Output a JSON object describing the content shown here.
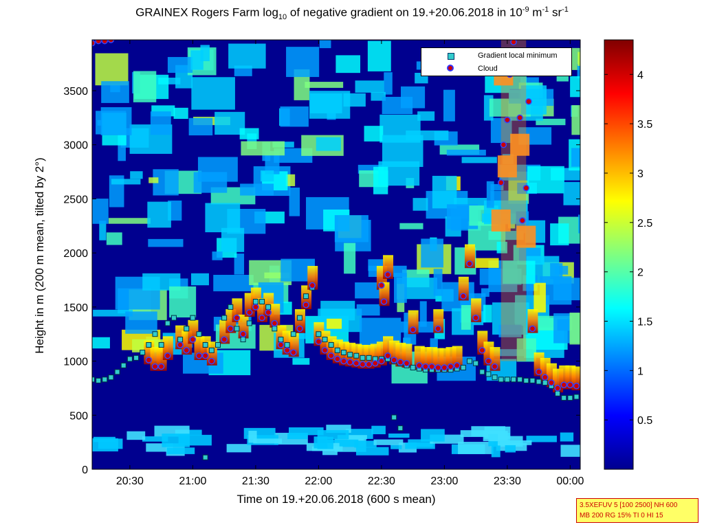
{
  "title": {
    "main": "GRAINEX Rogers Farm log",
    "sub": "10",
    "mid": " of negative gradient on 19.+20.06.2018 in 10",
    "exp1": "-9",
    "unit1": " m",
    "exp2": "-1",
    "unit2": " sr",
    "exp3": "-1"
  },
  "info_box": {
    "line1": "3.5XEFUV 5 [100 2500] NH 600",
    "line2": "MB 200 RG 15% TI 0 HI 15"
  },
  "chart_data": {
    "type": "heatmap",
    "xlabel": "Time on 19.+20.06.2018 (600 s mean)",
    "ylabel": "Height in m (200 m mean, tilted by 2°)",
    "x_tick_labels": [
      "20:30",
      "21:00",
      "21:30",
      "22:00",
      "22:30",
      "23:00",
      "23:30",
      "00:00"
    ],
    "x_tick_hours": [
      20.5,
      21.0,
      21.5,
      22.0,
      22.5,
      23.0,
      23.5,
      24.0
    ],
    "xlim_hours": [
      20.2,
      24.08
    ],
    "y_ticks": [
      0,
      500,
      1000,
      1500,
      2000,
      2500,
      3000,
      3500
    ],
    "ylim": [
      0,
      3970
    ],
    "colorbar": {
      "colormap": "jet",
      "range": [
        0,
        4.35
      ],
      "ticks": [
        0.5,
        1,
        1.5,
        2,
        2.5,
        3,
        3.5,
        4
      ]
    },
    "legend": {
      "position": "top-right",
      "entries": [
        "Gradient local minimum",
        "Cloud"
      ]
    },
    "series": [
      {
        "name": "Gradient local minimum",
        "marker": "square",
        "color": "#33cccc",
        "points": [
          [
            20.2,
            830
          ],
          [
            20.25,
            820
          ],
          [
            20.3,
            830
          ],
          [
            20.35,
            850
          ],
          [
            20.4,
            900
          ],
          [
            20.45,
            960
          ],
          [
            20.5,
            1020
          ],
          [
            20.55,
            1030
          ],
          [
            20.6,
            1080
          ],
          [
            20.65,
            1150
          ],
          [
            20.7,
            1250
          ],
          [
            20.75,
            1150
          ],
          [
            20.8,
            1350
          ],
          [
            20.85,
            1400
          ],
          [
            20.9,
            1200
          ],
          [
            20.95,
            1300
          ],
          [
            21.0,
            1400
          ],
          [
            21.05,
            1250
          ],
          [
            21.1,
            1150
          ],
          [
            21.15,
            1100
          ],
          [
            21.2,
            1150
          ],
          [
            21.25,
            1400
          ],
          [
            21.3,
            1500
          ],
          [
            21.35,
            1300
          ],
          [
            21.4,
            1200
          ],
          [
            21.45,
            1350
          ],
          [
            21.5,
            1550
          ],
          [
            21.55,
            1550
          ],
          [
            21.6,
            1500
          ],
          [
            21.65,
            1300
          ],
          [
            21.7,
            1200
          ],
          [
            21.75,
            1150
          ],
          [
            21.8,
            1250
          ],
          [
            21.85,
            1400
          ],
          [
            21.9,
            1600
          ],
          [
            21.95,
            1680
          ],
          [
            22.0,
            1250
          ],
          [
            22.05,
            1200
          ],
          [
            22.1,
            1150
          ],
          [
            22.15,
            1100
          ],
          [
            22.2,
            1080
          ],
          [
            22.25,
            1060
          ],
          [
            22.3,
            1050
          ],
          [
            22.35,
            1030
          ],
          [
            22.4,
            1030
          ],
          [
            22.45,
            1020
          ],
          [
            22.5,
            1020
          ],
          [
            22.55,
            1020
          ],
          [
            22.6,
            1000
          ],
          [
            22.65,
            980
          ],
          [
            22.7,
            960
          ],
          [
            22.75,
            940
          ],
          [
            22.8,
            930
          ],
          [
            22.85,
            920
          ],
          [
            22.9,
            920
          ],
          [
            22.95,
            920
          ],
          [
            23.0,
            920
          ],
          [
            23.05,
            920
          ],
          [
            23.1,
            930
          ],
          [
            23.15,
            940
          ],
          [
            23.2,
            1000
          ],
          [
            23.25,
            980
          ],
          [
            23.3,
            900
          ],
          [
            23.35,
            880
          ],
          [
            23.4,
            850
          ],
          [
            23.45,
            830
          ],
          [
            23.5,
            830
          ],
          [
            23.55,
            830
          ],
          [
            23.6,
            830
          ],
          [
            23.65,
            820
          ],
          [
            23.7,
            820
          ],
          [
            23.75,
            810
          ],
          [
            23.8,
            800
          ],
          [
            23.85,
            770
          ],
          [
            23.9,
            700
          ],
          [
            23.95,
            660
          ],
          [
            24.0,
            660
          ],
          [
            24.05,
            670
          ],
          [
            21.1,
            110
          ],
          [
            22.65,
            380
          ],
          [
            22.6,
            480
          ]
        ]
      },
      {
        "name": "Cloud",
        "marker": "circle",
        "color": "#cc0000",
        "points": [
          [
            20.2,
            3940
          ],
          [
            20.25,
            3960
          ],
          [
            20.3,
            3960
          ],
          [
            20.35,
            3970
          ],
          [
            20.65,
            1010
          ],
          [
            20.7,
            950
          ],
          [
            20.75,
            950
          ],
          [
            20.8,
            1050
          ],
          [
            20.9,
            1150
          ],
          [
            20.95,
            1100
          ],
          [
            21.0,
            1200
          ],
          [
            21.05,
            1050
          ],
          [
            21.1,
            1050
          ],
          [
            21.15,
            1000
          ],
          [
            21.25,
            1200
          ],
          [
            21.3,
            1300
          ],
          [
            21.35,
            1400
          ],
          [
            21.4,
            1250
          ],
          [
            21.45,
            1450
          ],
          [
            21.5,
            1500
          ],
          [
            21.55,
            1400
          ],
          [
            21.6,
            1450
          ],
          [
            21.65,
            1350
          ],
          [
            21.7,
            1150
          ],
          [
            21.75,
            1100
          ],
          [
            21.8,
            1080
          ],
          [
            21.85,
            1300
          ],
          [
            21.9,
            1520
          ],
          [
            21.95,
            1700
          ],
          [
            22.0,
            1180
          ],
          [
            22.05,
            1100
          ],
          [
            22.1,
            1050
          ],
          [
            22.15,
            1020
          ],
          [
            22.2,
            1000
          ],
          [
            22.25,
            990
          ],
          [
            22.3,
            980
          ],
          [
            22.35,
            970
          ],
          [
            22.4,
            970
          ],
          [
            22.45,
            980
          ],
          [
            22.5,
            1000
          ],
          [
            22.55,
            1050
          ],
          [
            22.5,
            1700
          ],
          [
            22.55,
            1800
          ],
          [
            22.52,
            1550
          ],
          [
            22.6,
            1010
          ],
          [
            22.65,
            990
          ],
          [
            22.7,
            980
          ],
          [
            22.75,
            1290
          ],
          [
            22.8,
            960
          ],
          [
            22.85,
            950
          ],
          [
            22.9,
            950
          ],
          [
            22.95,
            940
          ],
          [
            23.0,
            940
          ],
          [
            22.95,
            1300
          ],
          [
            23.05,
            950
          ],
          [
            23.1,
            960
          ],
          [
            23.15,
            1600
          ],
          [
            23.2,
            1900
          ],
          [
            23.25,
            1400
          ],
          [
            23.3,
            1100
          ],
          [
            23.35,
            1000
          ],
          [
            23.4,
            950
          ],
          [
            23.45,
            2650
          ],
          [
            23.47,
            3000
          ],
          [
            23.5,
            3230
          ],
          [
            23.52,
            3650
          ],
          [
            23.55,
            3950
          ],
          [
            23.6,
            3250
          ],
          [
            23.65,
            2600
          ],
          [
            23.62,
            2300
          ],
          [
            23.67,
            3400
          ],
          [
            23.7,
            1300
          ],
          [
            23.75,
            900
          ],
          [
            23.8,
            850
          ],
          [
            23.85,
            800
          ],
          [
            23.9,
            750
          ],
          [
            23.95,
            780
          ],
          [
            24.0,
            780
          ],
          [
            24.05,
            770
          ]
        ]
      }
    ]
  }
}
